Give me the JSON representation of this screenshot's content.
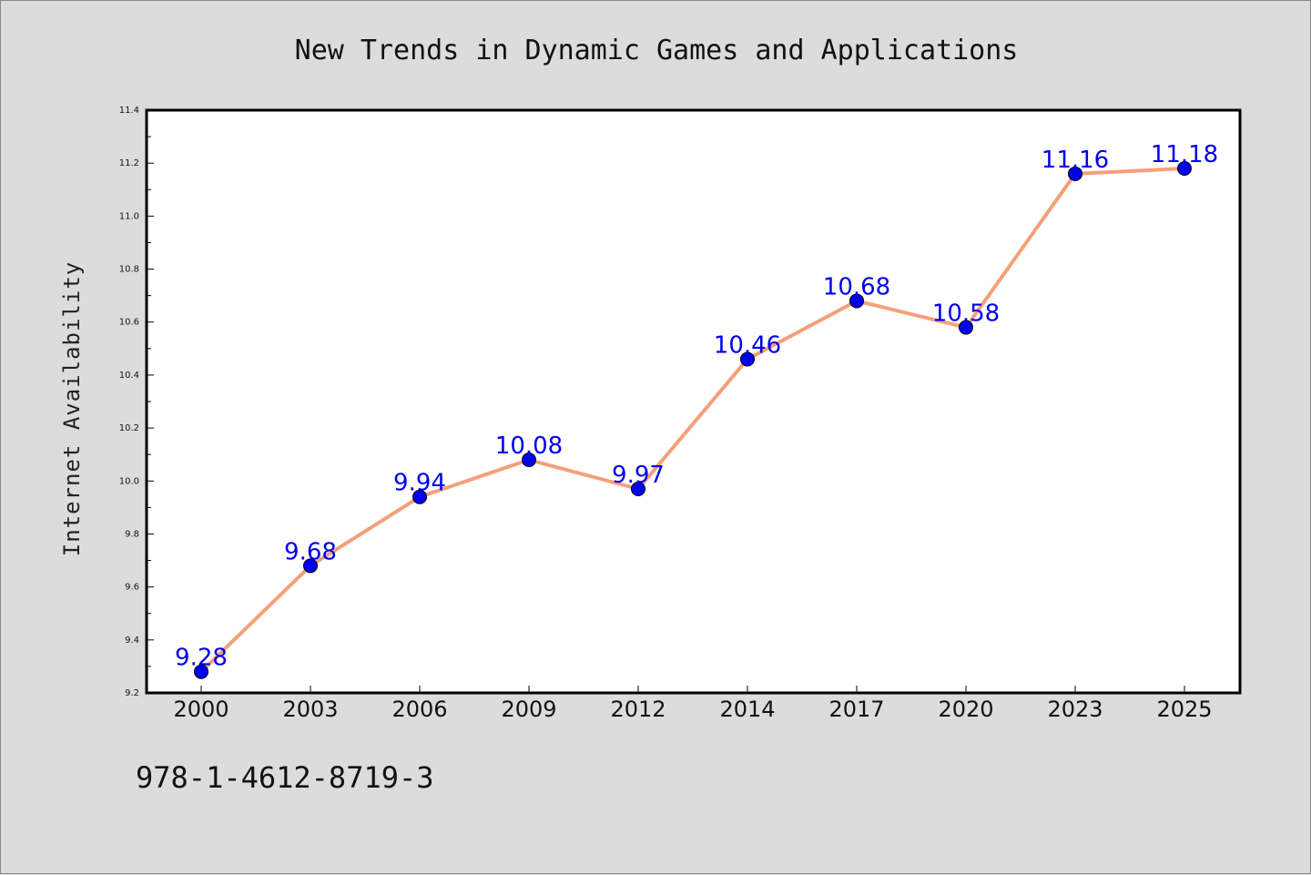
{
  "chart_data": {
    "type": "line",
    "title": "New Trends in Dynamic Games and Applications",
    "ylabel": "Internet Availability",
    "xlabel": "",
    "categories": [
      "2000",
      "2003",
      "2006",
      "2009",
      "2012",
      "2014",
      "2017",
      "2020",
      "2023",
      "2025"
    ],
    "series": [
      {
        "values": [
          9.28,
          9.68,
          9.94,
          10.08,
          9.97,
          10.46,
          10.68,
          10.58,
          11.16,
          11.18
        ]
      }
    ],
    "data_labels": [
      "9.28",
      "9.68",
      "9.94",
      "10.08",
      "9.97",
      "10.46",
      "10.68",
      "10.58",
      "11.16",
      "11.18"
    ],
    "ylim": [
      9.2,
      11.4
    ],
    "yticks": [
      "9.2",
      "9.4",
      "9.6",
      "9.8",
      "10.0",
      "10.2",
      "10.4",
      "10.6",
      "10.8",
      "11.0",
      "11.2",
      "11.4"
    ],
    "grid": false,
    "colors": {
      "line": "#f4a07a",
      "marker": "#0000ee",
      "label": "#0000ee",
      "plot_bg": "#ffffff",
      "page_bg": "#dcdcdc"
    }
  },
  "footer": {
    "isbn": "978-1-4612-8719-3"
  }
}
